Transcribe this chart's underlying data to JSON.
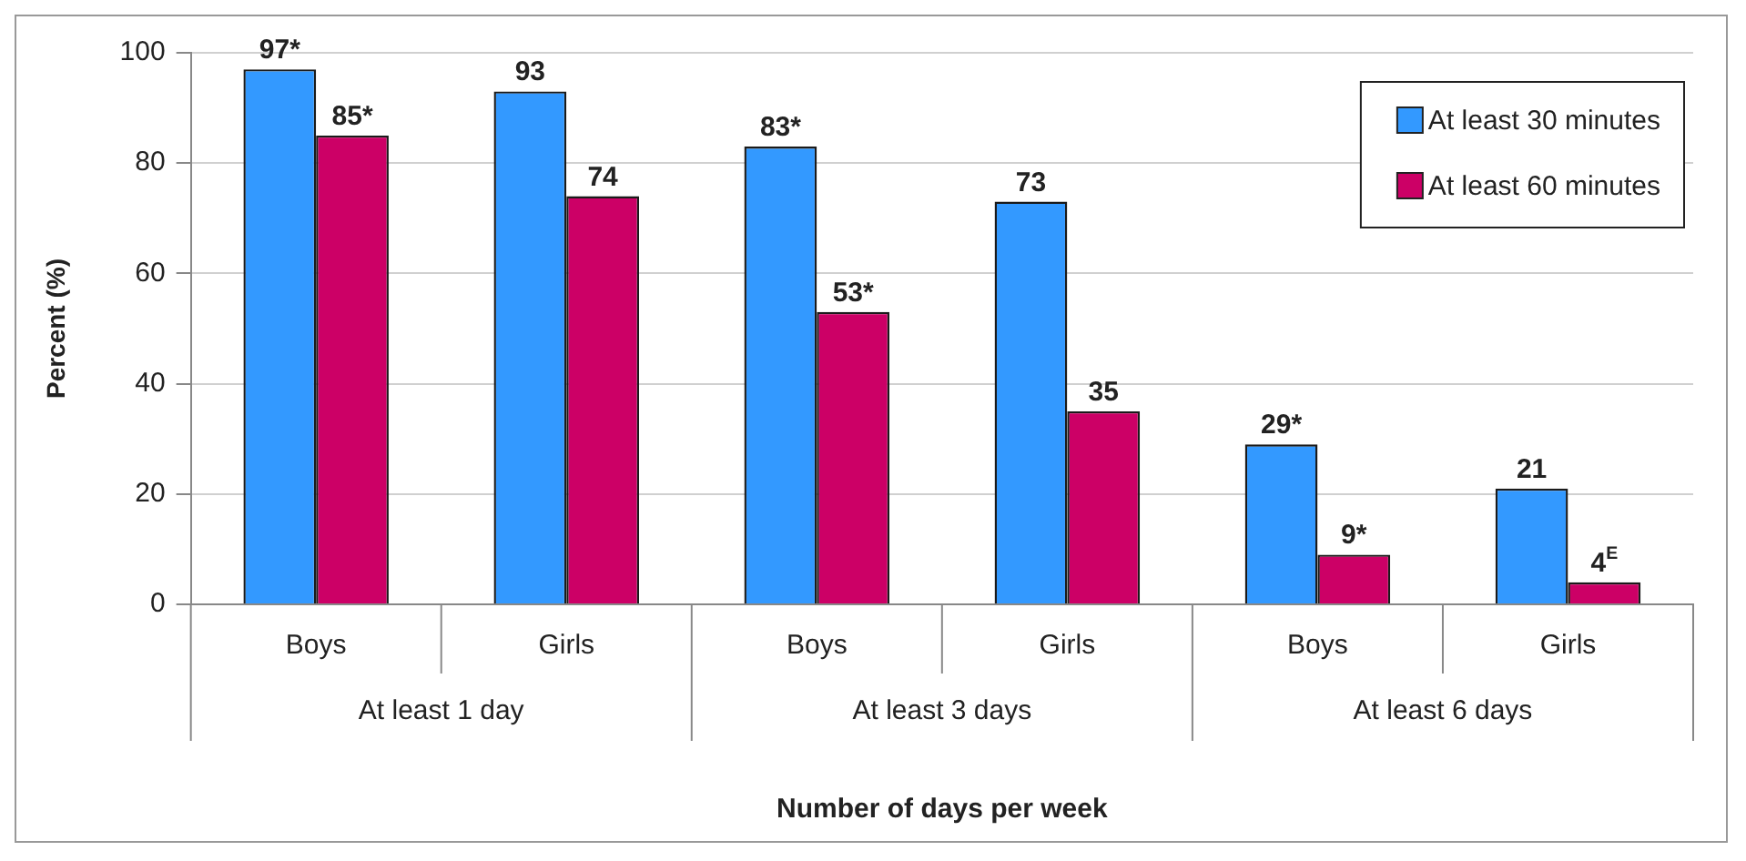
{
  "chart_data": {
    "type": "bar",
    "xlabel": "Number of days per week",
    "ylabel": "Percent (%)",
    "categories": [
      "Boys",
      "Girls",
      "Boys",
      "Girls",
      "Boys",
      "Girls"
    ],
    "series": [
      {
        "name": "At least 30 minutes",
        "color": "#3399ff",
        "values": [
          97,
          93,
          83,
          73,
          29,
          21
        ],
        "value_labels": [
          "97*",
          "93",
          "83*",
          "73",
          "29*",
          "21"
        ]
      },
      {
        "name": "At least 60 minutes",
        "color": "#cc0066",
        "values": [
          85,
          74,
          53,
          35,
          9,
          4
        ],
        "value_labels": [
          "85*",
          "74",
          "53*",
          "35",
          "9*",
          "4$^{E}$"
        ]
      }
    ],
    "annotations": [
      "At least 1 day",
      "At least 3 days",
      "At least 6 days"
    ],
    "ylim": [
      0,
      100
    ],
    "yticks": [
      0,
      20,
      40,
      60,
      80,
      100
    ],
    "grid": "y",
    "legend": "top right"
  }
}
